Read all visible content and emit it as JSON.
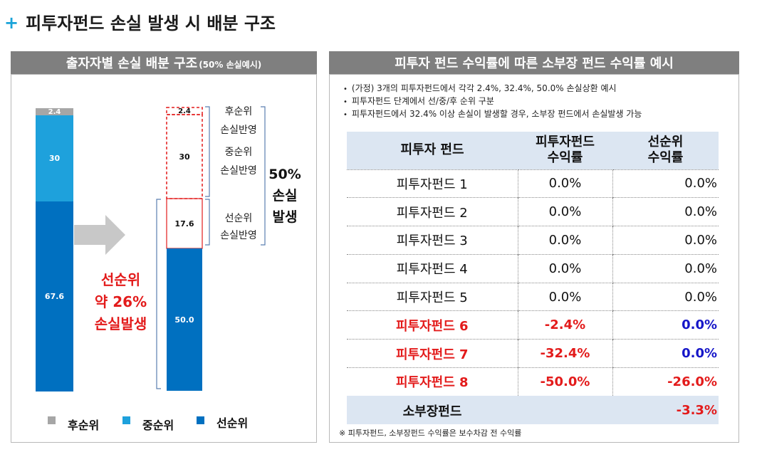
{
  "title": {
    "plus": "+",
    "text": "피투자펀드 손실 발생 시 배분 구조"
  },
  "left": {
    "header": "출자자별 손실 배분 구조",
    "header_note": "(50% 손실예시)",
    "bar1": {
      "junior": "2.4",
      "mezz": "30",
      "senior": "67.6"
    },
    "bar2": {
      "junior": "2.4",
      "mezz": "30",
      "mezz_senior_loss": "17.6",
      "senior": "50.0"
    },
    "brackets": {
      "junior_1": "후순위",
      "junior_2": "손실반영",
      "mezz_1": "중순위",
      "mezz_2": "손실반영",
      "senior_1": "선순위",
      "senior_2": "손실반영"
    },
    "total_loss": [
      "50%",
      "손실",
      "발생"
    ],
    "senior_loss": [
      "선순위",
      "약 26%",
      "손실발생"
    ],
    "legend": [
      {
        "label": "후순위",
        "color": "#a6a6a6"
      },
      {
        "label": "중순위",
        "color": "#1ea1dc"
      },
      {
        "label": "선순위",
        "color": "#0070c0"
      }
    ]
  },
  "right": {
    "header": "피투자 펀드 수익률에 따른 소부장 펀드 수익률 예시",
    "notes": [
      "(가정) 3개의 피투자펀드에서 각각 2.4%, 32.4%, 50.0% 손실상환 예시",
      "피투자펀드 단계에서 선/중/후 순위 구분",
      "피투자펀드에서 32.4% 이상 손실이 발생할 경우, 소부장 펀드에서 손실발생 가능"
    ],
    "table": {
      "headers": [
        "피투자 펀드",
        "피투자펀드\n수익률",
        "선순위\n수익률"
      ],
      "rows": [
        [
          "피투자펀드 1",
          "0.0%",
          "0.0%"
        ],
        [
          "피투자펀드 2",
          "0.0%",
          "0.0%"
        ],
        [
          "피투자펀드 3",
          "0.0%",
          "0.0%"
        ],
        [
          "피투자펀드 4",
          "0.0%",
          "0.0%"
        ],
        [
          "피투자펀드 5",
          "0.0%",
          "0.0%"
        ],
        [
          "피투자펀드 6",
          "-2.4%",
          "0.0%"
        ],
        [
          "피투자펀드 7",
          "-32.4%",
          "0.0%"
        ],
        [
          "피투자펀드 8",
          "-50.0%",
          "-26.0%"
        ]
      ],
      "total": [
        "소부장펀드",
        "",
        "-3.3%"
      ]
    },
    "footnote": "※ 피투자펀드, 소부장펀드 수익률은 보수차감 전 수익률"
  },
  "colors": {
    "junior": "#a6a6a6",
    "mezz": "#1ea1dc",
    "senior": "#0070c0",
    "red": "#e31b1b",
    "blue": "#1616c8",
    "header_bg": "#7f7f7f",
    "table_head": "#dce6f2"
  }
}
